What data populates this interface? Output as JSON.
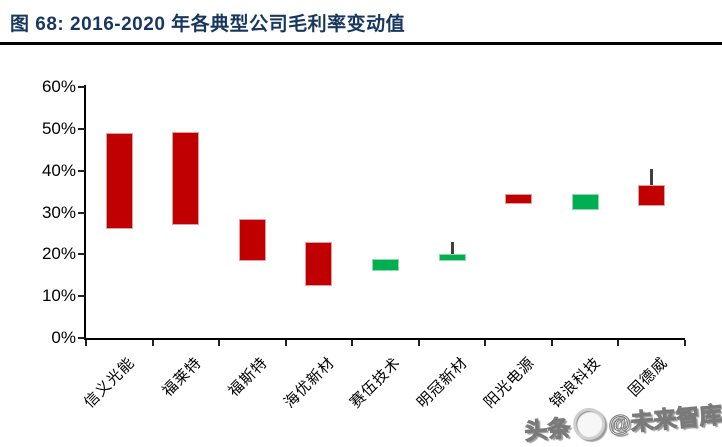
{
  "header": {
    "title": "图 68:  2016-2020 年各典型公司毛利率变动值"
  },
  "watermark": {
    "prefix": "头条",
    "suffix": "@未来智库",
    "logo_icon": "toutiao-circle-logo"
  },
  "chart_data": {
    "type": "candlestick",
    "title": "2016-2020 年各典型公司毛利率变动值",
    "ylim": [
      0,
      60
    ],
    "y_tick_step": 10,
    "y_ticks": [
      "60%",
      "50%",
      "40%",
      "30%",
      "20%",
      "10%",
      "0%"
    ],
    "grid": false,
    "legend": null,
    "colors": {
      "red_bar_fill": "#c00000",
      "red_bar_border": "#dfa0a0",
      "green_bar_fill": "#00b050",
      "green_bar_border": "#8fd9b2",
      "whisker": "#3f3f3f",
      "axis": "#000000",
      "title": "#17375e"
    },
    "categories": [
      "信义光能",
      "福莱特",
      "福斯特",
      "海优新材",
      "赛伍技术",
      "明冠新材",
      "阳光电源",
      "锦浪科技",
      "固德威"
    ],
    "candles": [
      {
        "label": "信义光能",
        "bar_low": 26,
        "bar_high": 49,
        "whisker_high": null,
        "color": "red"
      },
      {
        "label": "福莱特",
        "bar_low": 27,
        "bar_high": 49.3,
        "whisker_high": null,
        "color": "red"
      },
      {
        "label": "福斯特",
        "bar_low": 18.5,
        "bar_high": 28.5,
        "whisker_high": null,
        "color": "red"
      },
      {
        "label": "海优新材",
        "bar_low": 12.5,
        "bar_high": 23,
        "whisker_high": null,
        "color": "red"
      },
      {
        "label": "赛伍技术",
        "bar_low": 16,
        "bar_high": 19,
        "whisker_high": null,
        "color": "green"
      },
      {
        "label": "明冠新材",
        "bar_low": 18.5,
        "bar_high": 20,
        "whisker_high": 23,
        "color": "green"
      },
      {
        "label": "阳光电源",
        "bar_low": 32,
        "bar_high": 34.5,
        "whisker_high": null,
        "color": "red"
      },
      {
        "label": "锦浪科技",
        "bar_low": 30.5,
        "bar_high": 34.5,
        "whisker_high": null,
        "color": "green"
      },
      {
        "label": "固德威",
        "bar_low": 31.5,
        "bar_high": 36.5,
        "whisker_high": 40.5,
        "color": "red"
      }
    ]
  }
}
